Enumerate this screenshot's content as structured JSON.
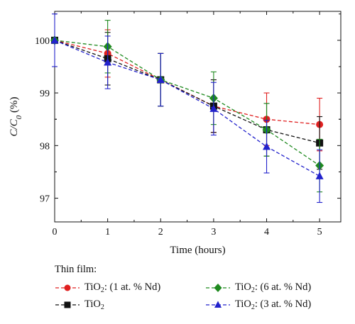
{
  "chart_data": {
    "type": "line",
    "x": [
      0,
      1,
      2,
      3,
      4,
      5
    ],
    "xlabel": "Time (hours)",
    "ylabel": {
      "main": "C/C",
      "sub": "0",
      "suffix": " (%)"
    },
    "xlim": [
      0,
      5.4
    ],
    "ylim": [
      96.55,
      100.55
    ],
    "xticks": [
      "0",
      "1",
      "2",
      "3",
      "4",
      "5"
    ],
    "yticks": [
      "97",
      "98",
      "99",
      "100"
    ],
    "grid": false,
    "legend": {
      "title": "Thin film:",
      "placement": "bottom"
    },
    "series": [
      {
        "key": "nd1",
        "name": {
          "pre": "TiO",
          "sub": "2",
          "post": ": (1 at. % Nd)"
        },
        "color": "#e02020",
        "marker": "circle",
        "values": [
          100.0,
          99.75,
          99.25,
          98.75,
          98.5,
          98.4
        ],
        "errors": [
          0.0,
          0.45,
          0.5,
          0.5,
          0.5,
          0.5
        ]
      },
      {
        "key": "tio2",
        "name": {
          "pre": "TiO",
          "sub": "2",
          "post": ""
        },
        "color": "#111111",
        "marker": "square",
        "values": [
          100.0,
          99.65,
          99.25,
          98.75,
          98.3,
          98.05
        ],
        "errors": [
          0.0,
          0.5,
          0.5,
          0.5,
          0.5,
          0.5
        ]
      },
      {
        "key": "nd6",
        "name": {
          "pre": "TiO",
          "sub": "2",
          "post": ": (6 at. % Nd)"
        },
        "color": "#1f8a1f",
        "marker": "diamond",
        "values": [
          100.0,
          99.88,
          99.25,
          98.9,
          98.3,
          97.62
        ],
        "errors": [
          0.0,
          0.5,
          0.5,
          0.5,
          0.5,
          0.5
        ]
      },
      {
        "key": "nd3",
        "name": {
          "pre": "TiO",
          "sub": "2",
          "post": ": (3 at. % Nd)"
        },
        "color": "#2222cc",
        "marker": "triangle",
        "values": [
          100.0,
          99.58,
          99.25,
          98.7,
          97.98,
          97.42
        ],
        "errors": [
          0.5,
          0.5,
          0.5,
          0.5,
          0.5,
          0.5
        ]
      }
    ]
  }
}
